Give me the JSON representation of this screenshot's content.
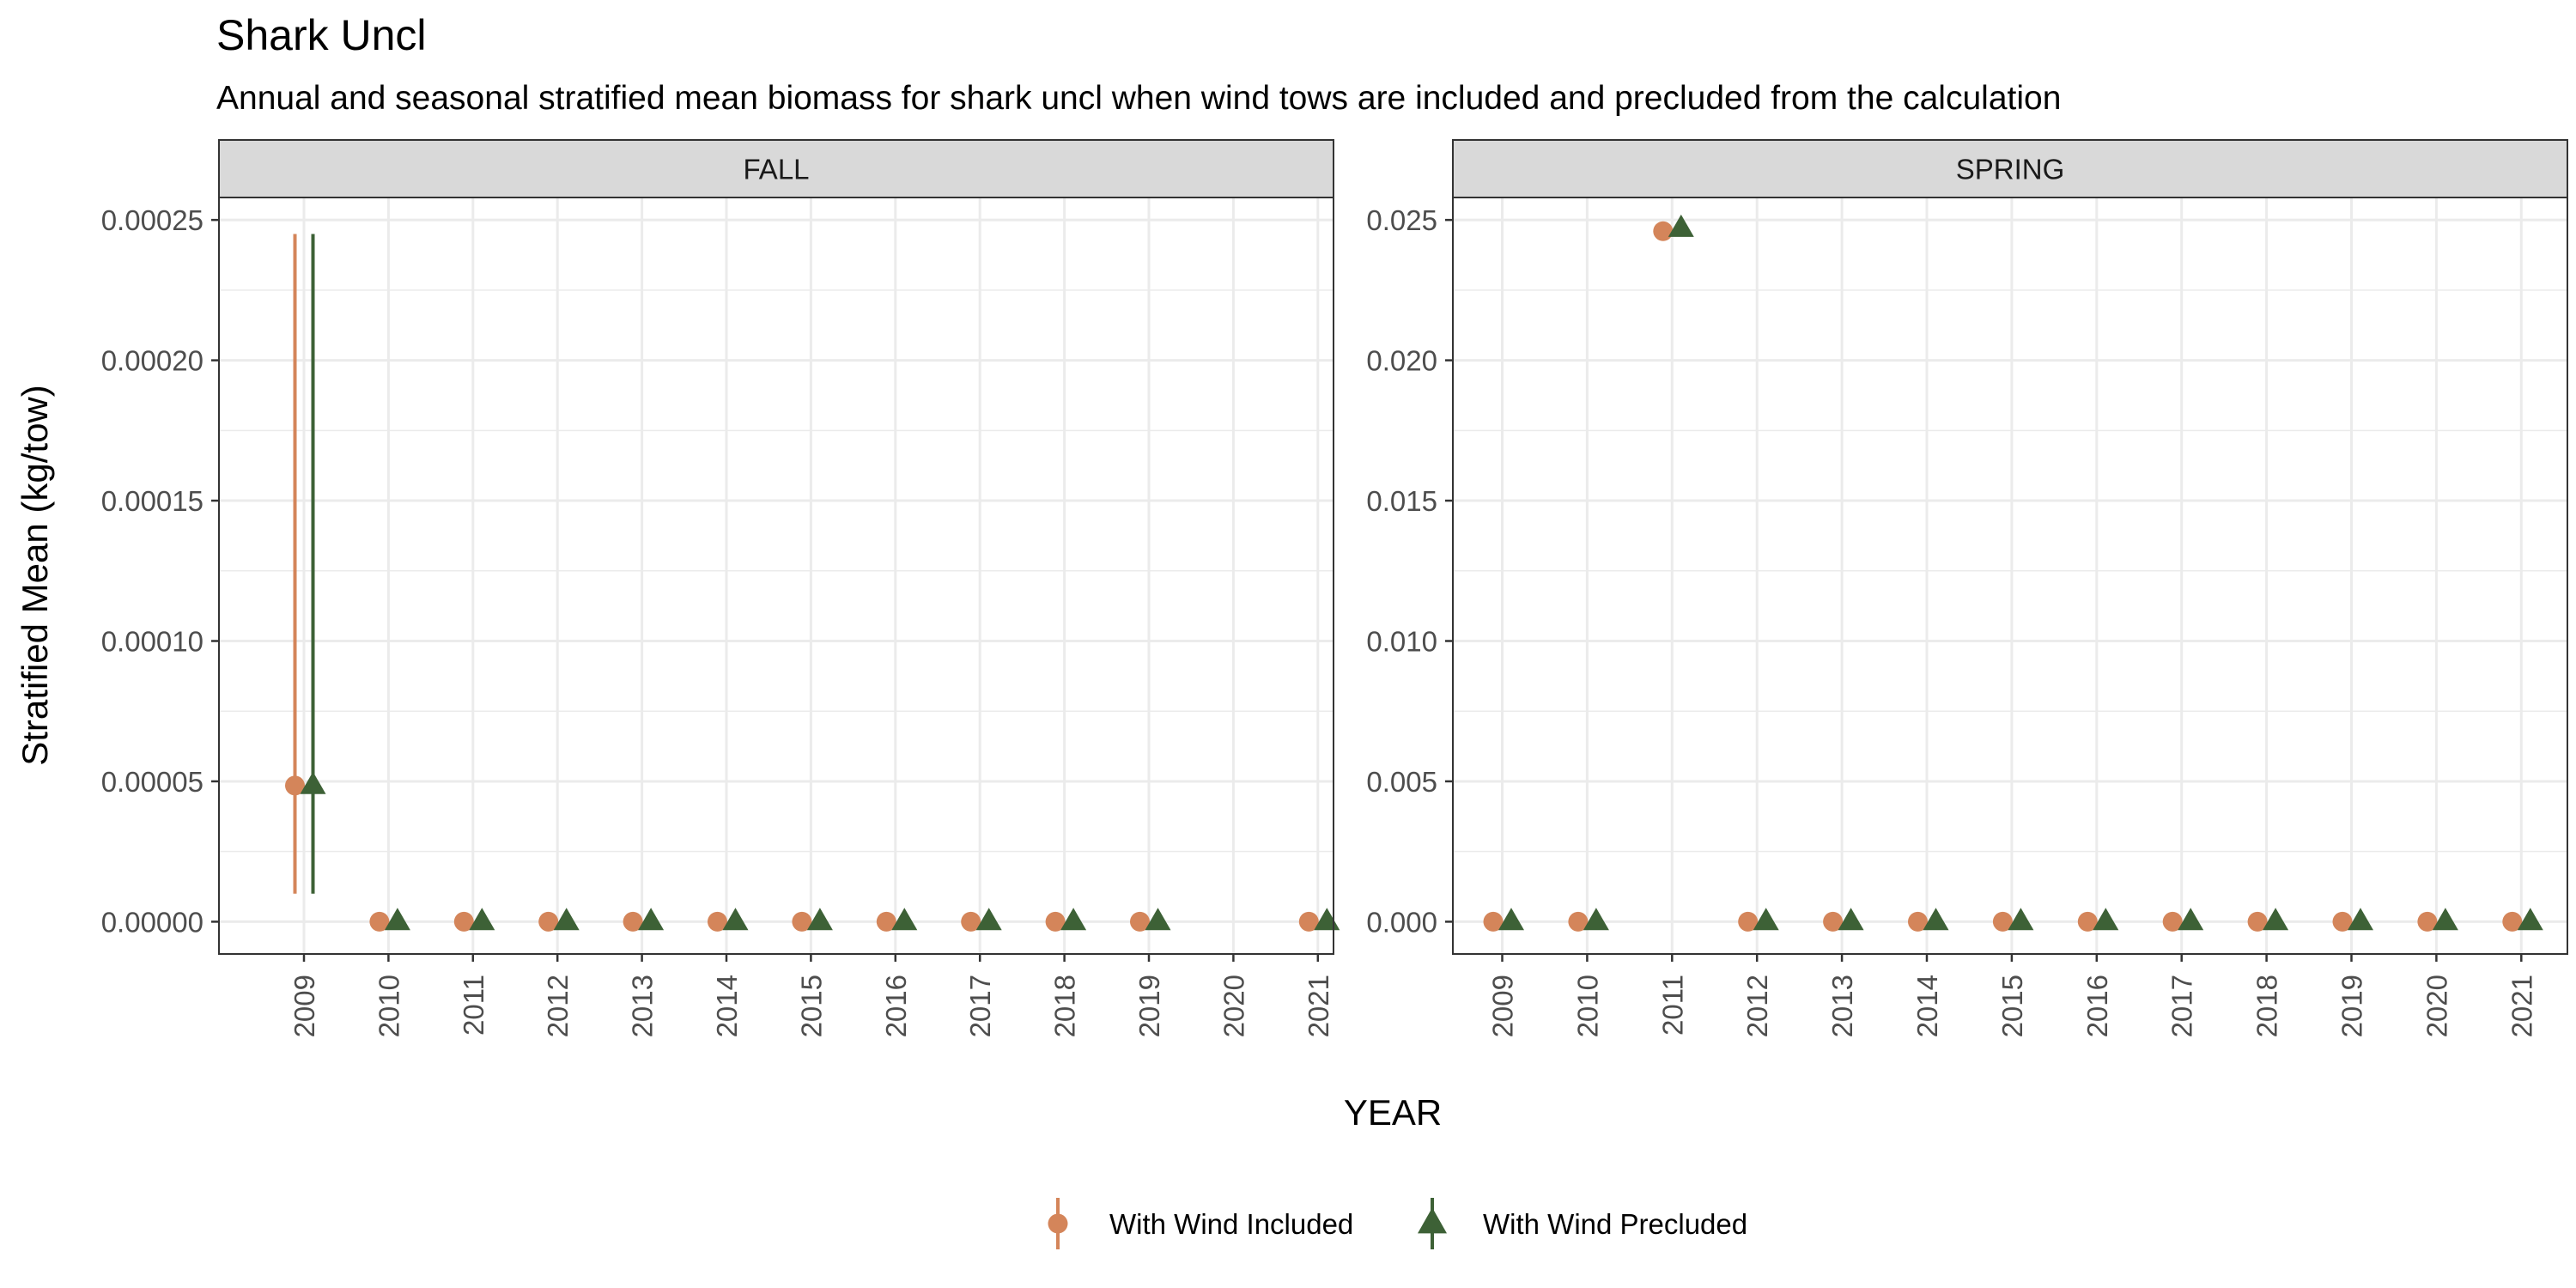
{
  "title": "Shark Uncl",
  "subtitle": "Annual and seasonal stratified mean biomass for shark uncl when wind tows are included and precluded from the calculation",
  "xlabel": "YEAR",
  "ylabel": "Stratified Mean (kg/tow)",
  "colors": {
    "included": "#D4855A",
    "precluded": "#3D6136",
    "strip_fill": "#D9D9D9",
    "grid": "#EBEBEB",
    "panel_border": "#333333"
  },
  "legend": {
    "position": "bottom",
    "entries": [
      {
        "label": "With Wind Included",
        "shape": "circle",
        "color": "#D4855A"
      },
      {
        "label": "With Wind Precluded",
        "shape": "triangle",
        "color": "#3D6136"
      }
    ]
  },
  "chart_data": [
    {
      "type": "scatter",
      "panel": "FALL",
      "x_categories": [
        "2009",
        "2010",
        "2011",
        "2012",
        "2013",
        "2014",
        "2015",
        "2016",
        "2017",
        "2018",
        "2019",
        "2020",
        "2021"
      ],
      "ylim": [
        -1.15e-05,
        0.000258
      ],
      "y_ticks": [
        0,
        5e-05,
        0.0001,
        0.00015,
        0.0002,
        0.00025
      ],
      "y_tick_labels": [
        "0.00000",
        "0.00005",
        "0.00010",
        "0.00015",
        "0.00020",
        "0.00025"
      ],
      "grid": true,
      "series": [
        {
          "name": "With Wind Included",
          "points": [
            {
              "x": "2009",
              "y": 4.85e-05,
              "lo": 1e-05,
              "hi": 0.000245
            },
            {
              "x": "2010",
              "y": 0
            },
            {
              "x": "2011",
              "y": 0
            },
            {
              "x": "2012",
              "y": 0
            },
            {
              "x": "2013",
              "y": 0
            },
            {
              "x": "2014",
              "y": 0
            },
            {
              "x": "2015",
              "y": 0
            },
            {
              "x": "2016",
              "y": 0
            },
            {
              "x": "2017",
              "y": 0
            },
            {
              "x": "2018",
              "y": 0
            },
            {
              "x": "2019",
              "y": 0
            },
            {
              "x": "2021",
              "y": 0
            }
          ]
        },
        {
          "name": "With Wind Precluded",
          "points": [
            {
              "x": "2009",
              "y": 4.85e-05,
              "lo": 1e-05,
              "hi": 0.000245
            },
            {
              "x": "2010",
              "y": 0
            },
            {
              "x": "2011",
              "y": 0
            },
            {
              "x": "2012",
              "y": 0
            },
            {
              "x": "2013",
              "y": 0
            },
            {
              "x": "2014",
              "y": 0
            },
            {
              "x": "2015",
              "y": 0
            },
            {
              "x": "2016",
              "y": 0
            },
            {
              "x": "2017",
              "y": 0
            },
            {
              "x": "2018",
              "y": 0
            },
            {
              "x": "2019",
              "y": 0
            },
            {
              "x": "2021",
              "y": 0
            }
          ]
        }
      ]
    },
    {
      "type": "scatter",
      "panel": "SPRING",
      "x_categories": [
        "2009",
        "2010",
        "2011",
        "2012",
        "2013",
        "2014",
        "2015",
        "2016",
        "2017",
        "2018",
        "2019",
        "2020",
        "2021"
      ],
      "ylim": [
        -0.00115,
        0.0258
      ],
      "y_ticks": [
        0,
        0.005,
        0.01,
        0.015,
        0.02,
        0.025
      ],
      "y_tick_labels": [
        "0.000",
        "0.005",
        "0.010",
        "0.015",
        "0.020",
        "0.025"
      ],
      "grid": true,
      "series": [
        {
          "name": "With Wind Included",
          "points": [
            {
              "x": "2009",
              "y": 0
            },
            {
              "x": "2010",
              "y": 0
            },
            {
              "x": "2011",
              "y": 0.0246
            },
            {
              "x": "2012",
              "y": 0
            },
            {
              "x": "2013",
              "y": 0
            },
            {
              "x": "2014",
              "y": 0
            },
            {
              "x": "2015",
              "y": 0
            },
            {
              "x": "2016",
              "y": 0
            },
            {
              "x": "2017",
              "y": 0
            },
            {
              "x": "2018",
              "y": 0
            },
            {
              "x": "2019",
              "y": 0
            },
            {
              "x": "2020",
              "y": 0
            },
            {
              "x": "2021",
              "y": 0
            }
          ]
        },
        {
          "name": "With Wind Precluded",
          "points": [
            {
              "x": "2009",
              "y": 0
            },
            {
              "x": "2010",
              "y": 0
            },
            {
              "x": "2011",
              "y": 0.0247
            },
            {
              "x": "2012",
              "y": 0
            },
            {
              "x": "2013",
              "y": 0
            },
            {
              "x": "2014",
              "y": 0
            },
            {
              "x": "2015",
              "y": 0
            },
            {
              "x": "2016",
              "y": 0
            },
            {
              "x": "2017",
              "y": 0
            },
            {
              "x": "2018",
              "y": 0
            },
            {
              "x": "2019",
              "y": 0
            },
            {
              "x": "2020",
              "y": 0
            },
            {
              "x": "2021",
              "y": 0
            }
          ]
        }
      ]
    }
  ]
}
